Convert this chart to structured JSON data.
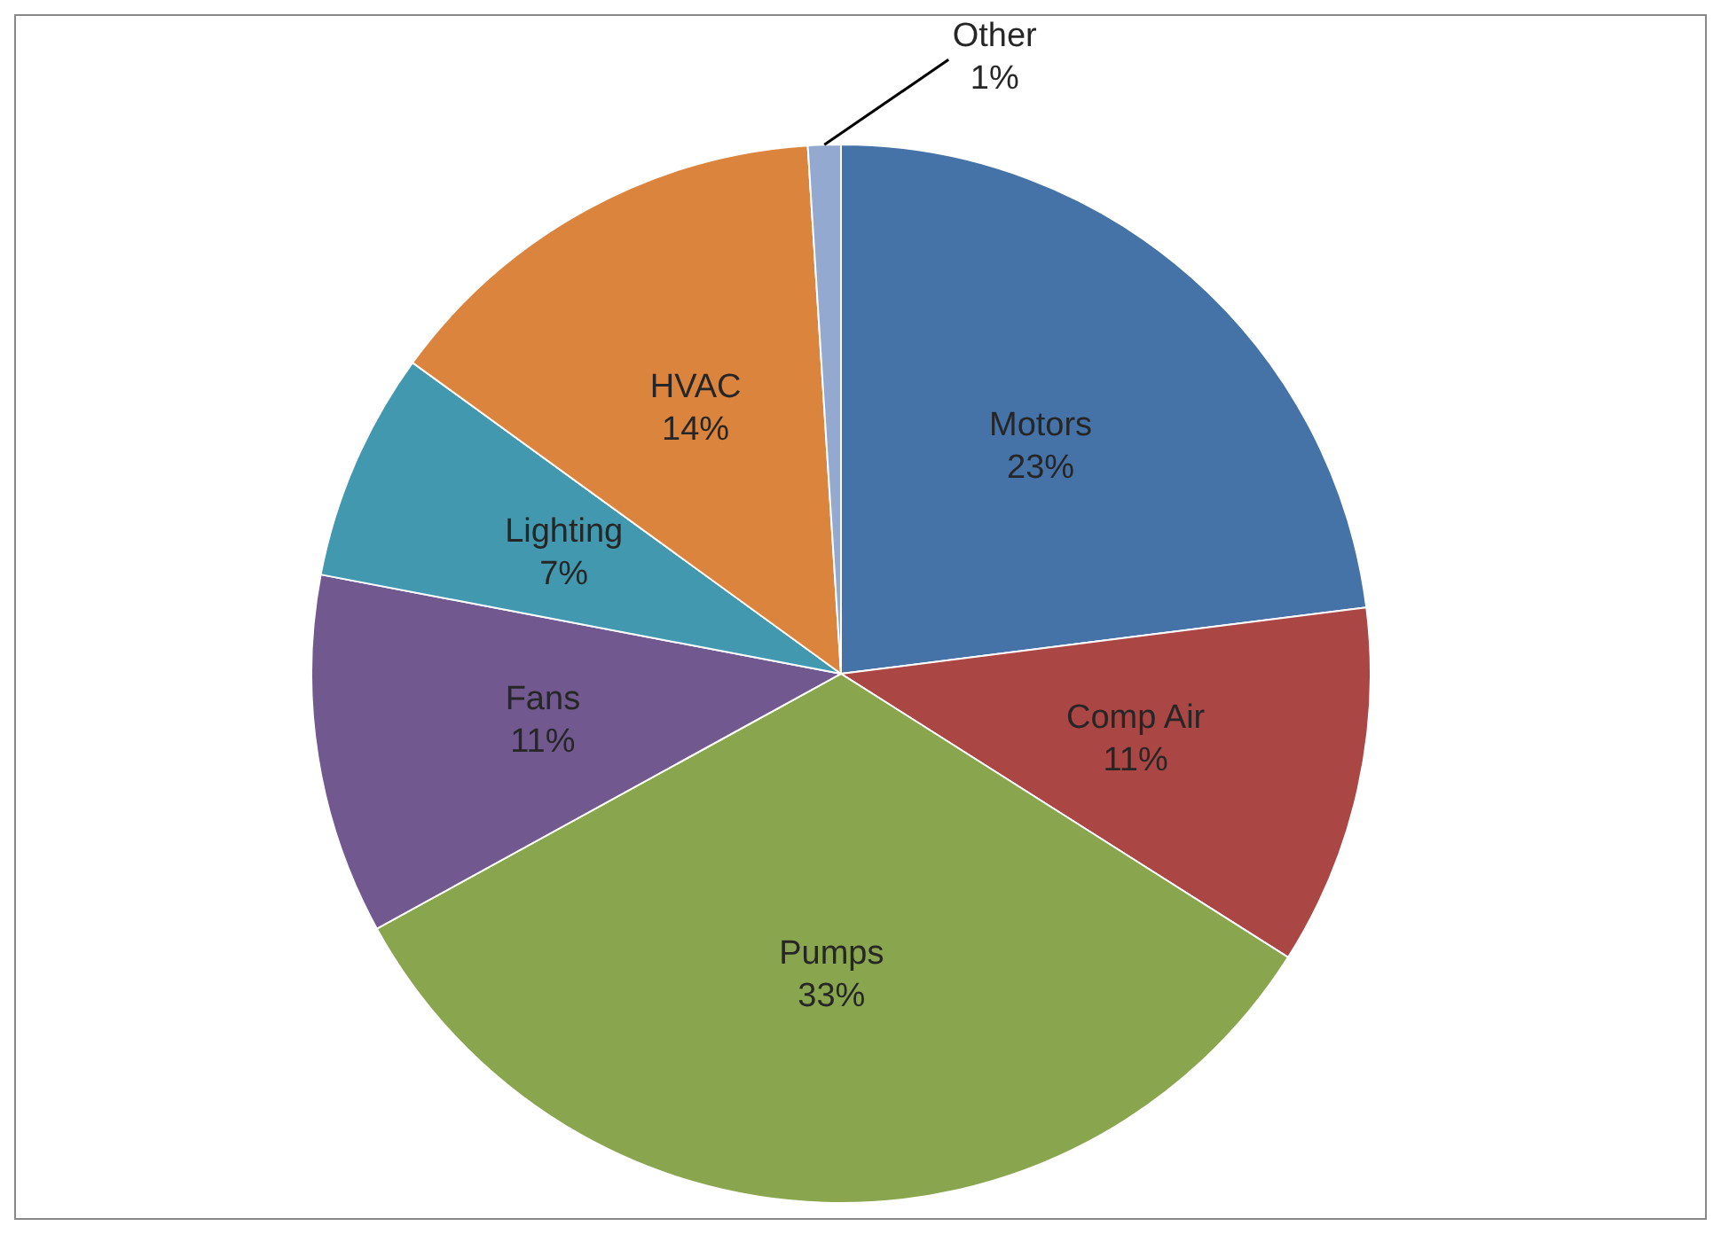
{
  "chart_data": {
    "type": "pie",
    "categories": [
      "Motors",
      "Comp Air",
      "Pumps",
      "Fans",
      "Lighting",
      "HVAC",
      "Other"
    ],
    "values": [
      23,
      11,
      33,
      11,
      7,
      14,
      1
    ],
    "colors": [
      "#4572a7",
      "#aa4643",
      "#89a54e",
      "#71588f",
      "#4198af",
      "#db843d",
      "#93a9cf"
    ],
    "value_labels": [
      "23%",
      "11%",
      "33%",
      "11%",
      "7%",
      "14%",
      "1%"
    ],
    "legend": false
  }
}
